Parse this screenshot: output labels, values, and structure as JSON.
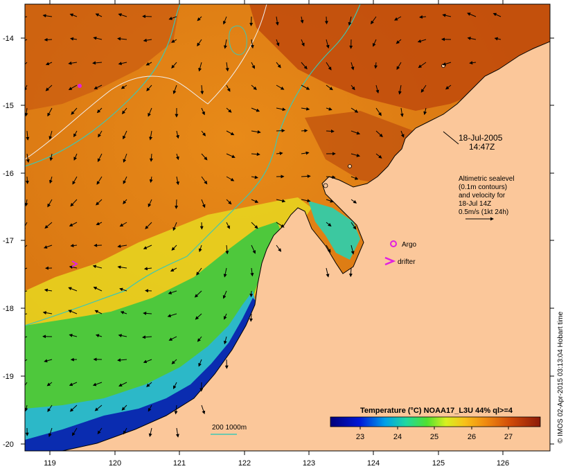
{
  "map": {
    "annotation_date": "18-Jul-2005",
    "annotation_time": "14:47Z",
    "altimetry_lines": [
      "Altimetric sealevel",
      "(0.1m contours)",
      "and velocity for",
      "18-Jul 14Z",
      "0.5m/s (1kt 24h)"
    ],
    "argo_label": "Argo",
    "drifter_label": "drifter",
    "depth_legend": "200  1000m",
    "colorbar_title": "Temperature (°C) NOAA17_L3U 44% ql>=4",
    "colorbar_ticks": [
      "23",
      "24",
      "25",
      "26",
      "27"
    ],
    "credit": "© IMOS 02-Apr-2015 03:13:04 Hobart time",
    "y_tick_labels": [
      "-14",
      "-15",
      "-16",
      "-17",
      "-18",
      "-19",
      "-20"
    ],
    "x_tick_labels": [
      "119",
      "120",
      "121",
      "122",
      "123",
      "124",
      "125",
      "126"
    ],
    "lat_range": [
      -20.1,
      -13.6
    ],
    "lon_range": [
      118.65,
      126.65
    ],
    "colors": {
      "land": "#fbc79a",
      "sst_warm": "#e07d12",
      "sst_hot": "#a8320a",
      "sst_cool": "#48d048",
      "sst_cold": "#0a1a90",
      "contour": "#3cc8b4",
      "argo": "#e020e0"
    }
  }
}
